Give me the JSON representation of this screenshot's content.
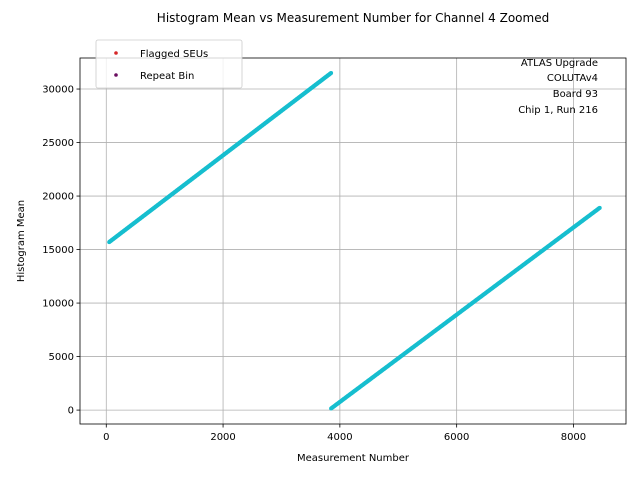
{
  "chart_data": {
    "type": "scatter",
    "title": "Histogram Mean vs Measurement Number for Channel 4 Zoomed",
    "xlabel": "Measurement Number",
    "ylabel": "Histogram Mean",
    "xlim": [
      -450,
      8900
    ],
    "ylim": [
      -1300,
      32900
    ],
    "xticks": [
      0,
      2000,
      4000,
      6000,
      8000
    ],
    "xtick_labels": [
      "0",
      "2000",
      "4000",
      "6000",
      "8000"
    ],
    "yticks": [
      0,
      5000,
      10000,
      15000,
      20000,
      25000,
      30000
    ],
    "ytick_labels": [
      "0",
      "5000",
      "10000",
      "15000",
      "20000",
      "25000",
      "30000"
    ],
    "grid": true,
    "legend_position": "top-left",
    "series": [
      {
        "name": "Flagged SEUs",
        "color": "#d62728",
        "points": []
      },
      {
        "name": "Repeat Bin",
        "color": "#6a0d5f",
        "points": []
      },
      {
        "color": "#17becf",
        "segments": [
          {
            "x": [
              50,
              3850
            ],
            "y": [
              15700,
              31500
            ]
          },
          {
            "x": [
              3850,
              8450
            ],
            "y": [
              150,
              18900
            ]
          }
        ]
      }
    ],
    "annotations": [
      "ATLAS Upgrade",
      "COLUTAv4",
      "Board 93",
      "Chip 1, Run 216"
    ]
  }
}
